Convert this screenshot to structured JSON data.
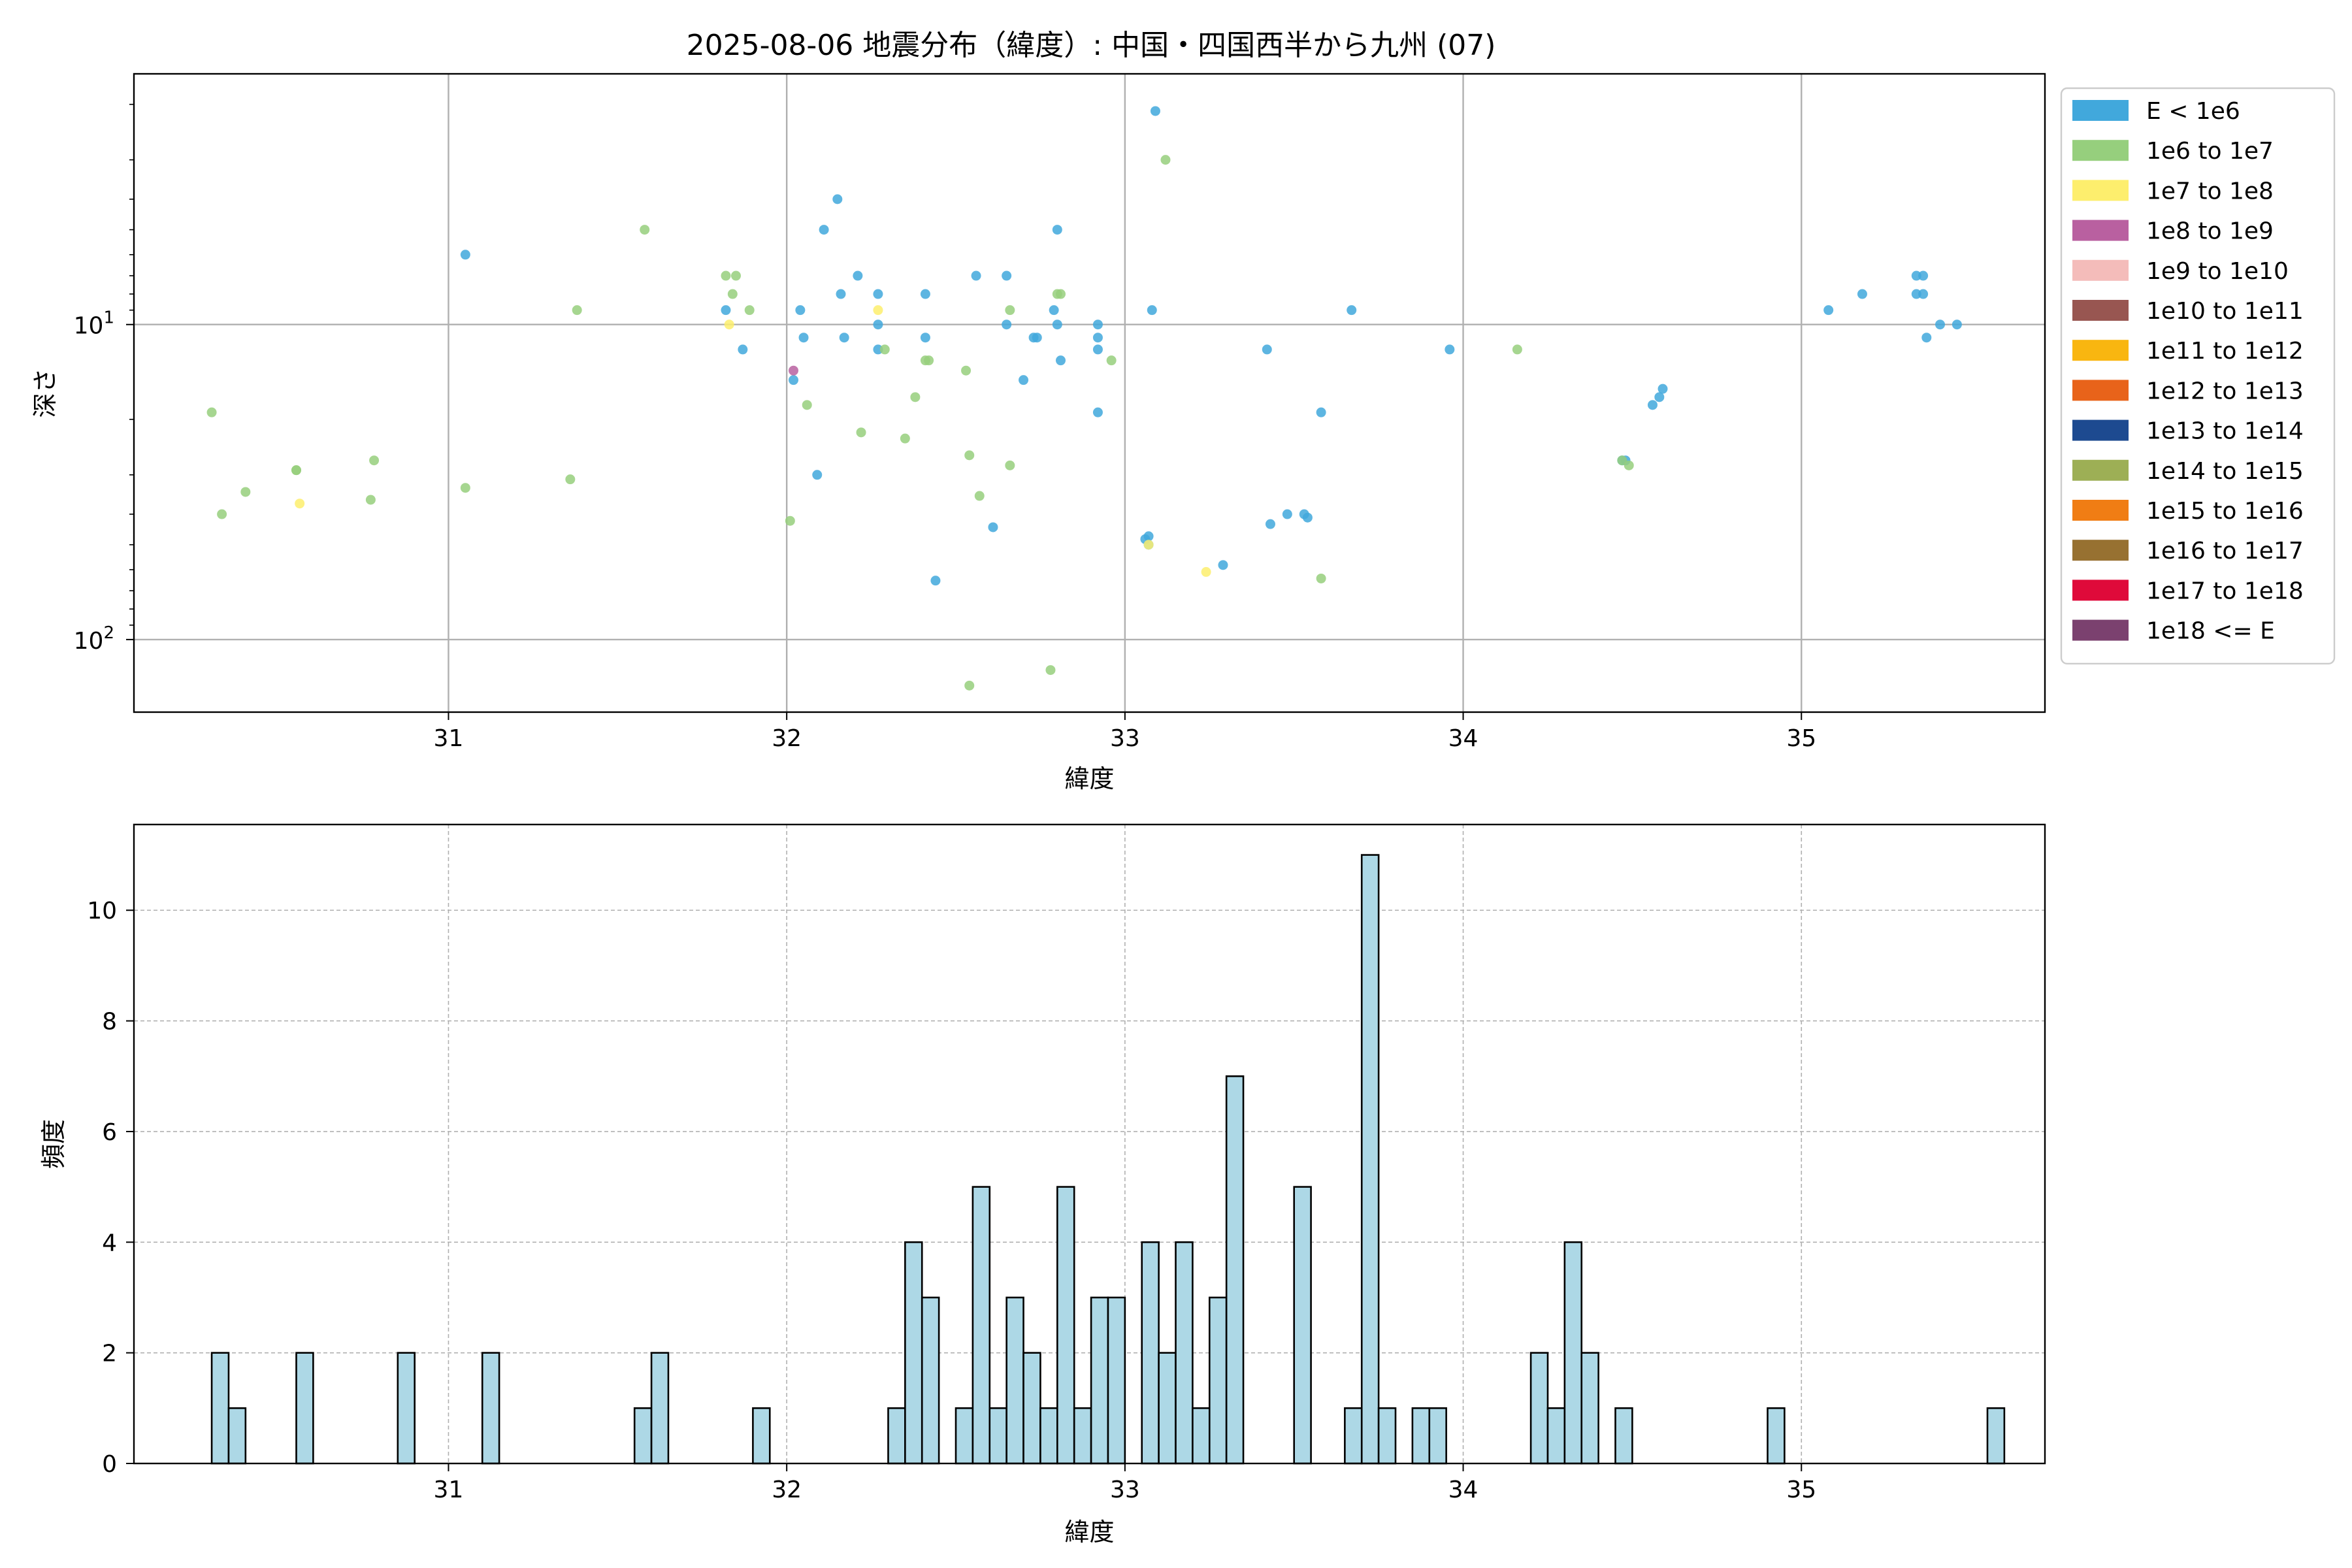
{
  "figure_title": "2025-08-06 地震分布（緯度）: 中国・四国西半から九州 (07)",
  "chart_data": [
    {
      "type": "scatter",
      "xlabel": "緯度",
      "ylabel": "深さ",
      "xlim": [
        30.07,
        35.72
      ],
      "ylim": [
        170,
        1.6
      ],
      "y_scale": "log",
      "y_inverted": true,
      "grid": true,
      "legend_position": "outside-right",
      "x_ticks": [
        31,
        32,
        33,
        34,
        35
      ],
      "y_ticks": [
        {
          "value": 10,
          "label": "10",
          "exp": "1"
        },
        {
          "value": 100,
          "label": "10",
          "exp": "2"
        }
      ],
      "legend": [
        {
          "label": "E < 1e6",
          "color": "#41a8dc"
        },
        {
          "label": "1e6 to 1e7",
          "color": "#96cf7d"
        },
        {
          "label": "1e7 to 1e8",
          "color": "#fdee6d"
        },
        {
          "label": "1e8 to 1e9",
          "color": "#b960a0"
        },
        {
          "label": "1e9 to 1e10",
          "color": "#f4bcba"
        },
        {
          "label": "1e10 to 1e11",
          "color": "#985651"
        },
        {
          "label": "1e11 to 1e12",
          "color": "#f9b610"
        },
        {
          "label": "1e12 to 1e13",
          "color": "#e8631a"
        },
        {
          "label": "1e13 to 1e14",
          "color": "#1d4a90"
        },
        {
          "label": "1e14 to 1e15",
          "color": "#9daf55"
        },
        {
          "label": "1e15 to 1e16",
          "color": "#f07d14"
        },
        {
          "label": "1e16 to 1e17",
          "color": "#977131"
        },
        {
          "label": "1e17 to 1e18",
          "color": "#df0a3a"
        },
        {
          "label": "1e18 <= E",
          "color": "#7b416f"
        }
      ],
      "series": [
        {
          "class": 0,
          "color": "#41a8dc",
          "points": [
            [
              31.05,
              6.0
            ],
            [
              31.82,
              9.0
            ],
            [
              31.87,
              12.0
            ],
            [
              32.02,
              15.0
            ],
            [
              32.04,
              9.0
            ],
            [
              32.05,
              11.0
            ],
            [
              32.09,
              30.0
            ],
            [
              32.11,
              5.0
            ],
            [
              32.15,
              4.0
            ],
            [
              32.16,
              8.0
            ],
            [
              32.17,
              11.0
            ],
            [
              32.21,
              7.0
            ],
            [
              32.27,
              8.0
            ],
            [
              32.27,
              10.0
            ],
            [
              32.27,
              12.0
            ],
            [
              32.41,
              8.0
            ],
            [
              32.41,
              11.0
            ],
            [
              32.44,
              65.0
            ],
            [
              32.56,
              7.0
            ],
            [
              32.61,
              44.0
            ],
            [
              32.65,
              7.0
            ],
            [
              32.65,
              10.0
            ],
            [
              32.7,
              15.0
            ],
            [
              32.73,
              11.0
            ],
            [
              32.74,
              11.0
            ],
            [
              32.79,
              9.0
            ],
            [
              32.8,
              10.0
            ],
            [
              32.8,
              5.0
            ],
            [
              32.81,
              13.0
            ],
            [
              32.92,
              10.0
            ],
            [
              32.92,
              11.0
            ],
            [
              32.92,
              12.0
            ],
            [
              32.92,
              19.0
            ],
            [
              33.06,
              48.0
            ],
            [
              33.07,
              50.0
            ],
            [
              33.07,
              47.0
            ],
            [
              33.08,
              9.0
            ],
            [
              33.09,
              2.1
            ],
            [
              33.29,
              58.0
            ],
            [
              33.42,
              12.0
            ],
            [
              33.43,
              43.0
            ],
            [
              33.48,
              40.0
            ],
            [
              33.53,
              40.0
            ],
            [
              33.54,
              41.0
            ],
            [
              33.58,
              19.0
            ],
            [
              33.67,
              9.0
            ],
            [
              33.96,
              12.0
            ],
            [
              34.47,
              27.0
            ],
            [
              34.48,
              27.0
            ],
            [
              34.56,
              18.0
            ],
            [
              34.58,
              17.0
            ],
            [
              34.59,
              16.0
            ],
            [
              35.08,
              9.0
            ],
            [
              35.18,
              8.0
            ],
            [
              35.34,
              8.0
            ],
            [
              35.34,
              7.0
            ],
            [
              35.36,
              8.0
            ],
            [
              35.36,
              7.0
            ],
            [
              35.37,
              11.0
            ],
            [
              35.41,
              10.0
            ],
            [
              35.46,
              10.0
            ]
          ]
        },
        {
          "class": 1,
          "color": "#96cf7d",
          "points": [
            [
              30.3,
              19.0
            ],
            [
              30.33,
              40.0
            ],
            [
              30.4,
              34.0
            ],
            [
              30.55,
              29.0
            ],
            [
              30.77,
              36.0
            ],
            [
              30.78,
              27.0
            ],
            [
              31.05,
              33.0
            ],
            [
              31.36,
              31.0
            ],
            [
              31.38,
              9.0
            ],
            [
              31.58,
              5.0
            ],
            [
              31.82,
              7.0
            ],
            [
              31.84,
              8.0
            ],
            [
              31.85,
              7.0
            ],
            [
              31.89,
              9.0
            ],
            [
              32.01,
              42.0
            ],
            [
              32.06,
              18.0
            ],
            [
              32.22,
              22.0
            ],
            [
              32.29,
              12.0
            ],
            [
              32.35,
              23.0
            ],
            [
              32.38,
              17.0
            ],
            [
              32.41,
              13.0
            ],
            [
              32.42,
              13.0
            ],
            [
              32.53,
              14.0
            ],
            [
              32.54,
              26.0
            ],
            [
              32.54,
              140.0
            ],
            [
              32.57,
              35.0
            ],
            [
              32.66,
              28.0
            ],
            [
              32.66,
              9.0
            ],
            [
              32.78,
              125.0
            ],
            [
              32.8,
              8.0
            ],
            [
              32.81,
              8.0
            ],
            [
              32.96,
              13.0
            ],
            [
              33.12,
              3.0
            ],
            [
              33.58,
              64.0
            ],
            [
              34.16,
              12.0
            ],
            [
              34.49,
              28.0
            ],
            [
              34.47,
              27.0
            ],
            [
              30.55,
              29.0
            ]
          ]
        },
        {
          "class": 2,
          "color": "#fdee6d",
          "points": [
            [
              30.56,
              37.0
            ],
            [
              31.83,
              10.0
            ],
            [
              32.27,
              9.0
            ],
            [
              33.07,
              50.0
            ],
            [
              33.24,
              61.0
            ]
          ]
        },
        {
          "class": 3,
          "color": "#b960a0",
          "points": [
            [
              32.02,
              14.0
            ]
          ]
        }
      ]
    },
    {
      "type": "histogram",
      "xlabel": "緯度",
      "ylabel": "頻度",
      "xlim": [
        30.07,
        35.72
      ],
      "ylim": [
        0,
        11.55
      ],
      "grid": true,
      "bar_fill": "#add8e6",
      "bar_edge": "#000000",
      "bin_start": 30.2,
      "bin_width": 0.05,
      "x_ticks": [
        31,
        32,
        33,
        34,
        35
      ],
      "y_ticks": [
        0,
        2,
        4,
        6,
        8,
        10
      ],
      "counts": [
        0,
        0,
        2,
        1,
        0,
        0,
        0,
        2,
        0,
        0,
        0,
        0,
        0,
        2,
        0,
        0,
        0,
        0,
        2,
        0,
        0,
        0,
        0,
        0,
        0,
        0,
        0,
        1,
        2,
        0,
        0,
        0,
        0,
        0,
        1,
        0,
        0,
        0,
        0,
        0,
        0,
        0,
        1,
        4,
        3,
        0,
        1,
        5,
        1,
        3,
        2,
        1,
        5,
        1,
        3,
        3,
        0,
        4,
        2,
        4,
        1,
        3,
        7,
        0,
        0,
        0,
        5,
        0,
        0,
        1,
        11,
        1,
        0,
        1,
        1,
        0,
        0,
        0,
        0,
        0,
        2,
        1,
        4,
        2,
        0,
        1,
        0,
        0,
        0,
        0,
        0,
        0,
        0,
        0,
        1,
        0,
        0,
        0,
        0,
        0,
        0,
        0,
        0,
        0,
        0,
        0,
        0,
        1,
        0,
        0,
        0,
        0,
        0,
        0,
        0,
        0,
        0,
        0,
        0,
        0,
        0,
        0,
        0,
        0,
        0,
        0,
        0,
        0,
        0,
        0,
        0,
        0,
        0,
        0,
        0,
        0,
        0,
        0,
        0,
        0,
        0,
        0,
        0,
        0,
        0,
        0,
        0,
        0,
        0,
        0,
        0,
        0,
        0,
        0,
        0,
        0,
        0,
        0,
        0,
        0,
        0,
        0,
        0,
        0,
        0,
        0,
        0,
        0,
        0,
        0,
        0,
        0,
        0,
        0,
        0,
        0,
        0,
        0,
        0,
        0,
        0,
        0,
        0,
        0,
        0,
        0,
        0,
        0,
        0,
        0,
        0,
        0,
        0,
        0,
        0,
        0,
        0,
        0,
        0,
        0
      ]
    }
  ]
}
